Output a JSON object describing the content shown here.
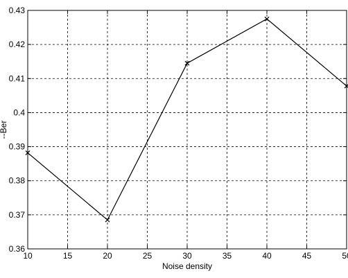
{
  "chart_data": {
    "type": "line",
    "title": "",
    "xlabel": "Noise density",
    "ylabel": "--Ber",
    "xlim": [
      10,
      50
    ],
    "ylim": [
      0.36,
      0.43
    ],
    "x_ticks": [
      "10",
      "15",
      "20",
      "25",
      "30",
      "35",
      "40",
      "45",
      "50"
    ],
    "y_ticks": [
      "0.36",
      "0.37",
      "0.38",
      "0.39",
      "0.4",
      "0.41",
      "0.42",
      "0.43"
    ],
    "grid": true,
    "grid_style": "dashed",
    "line_color": "#000000",
    "marker": "x",
    "series": [
      {
        "x": [
          10,
          20,
          30,
          40,
          50
        ],
        "y": [
          0.3882,
          0.3685,
          0.4145,
          0.4275,
          0.4078
        ]
      }
    ]
  }
}
